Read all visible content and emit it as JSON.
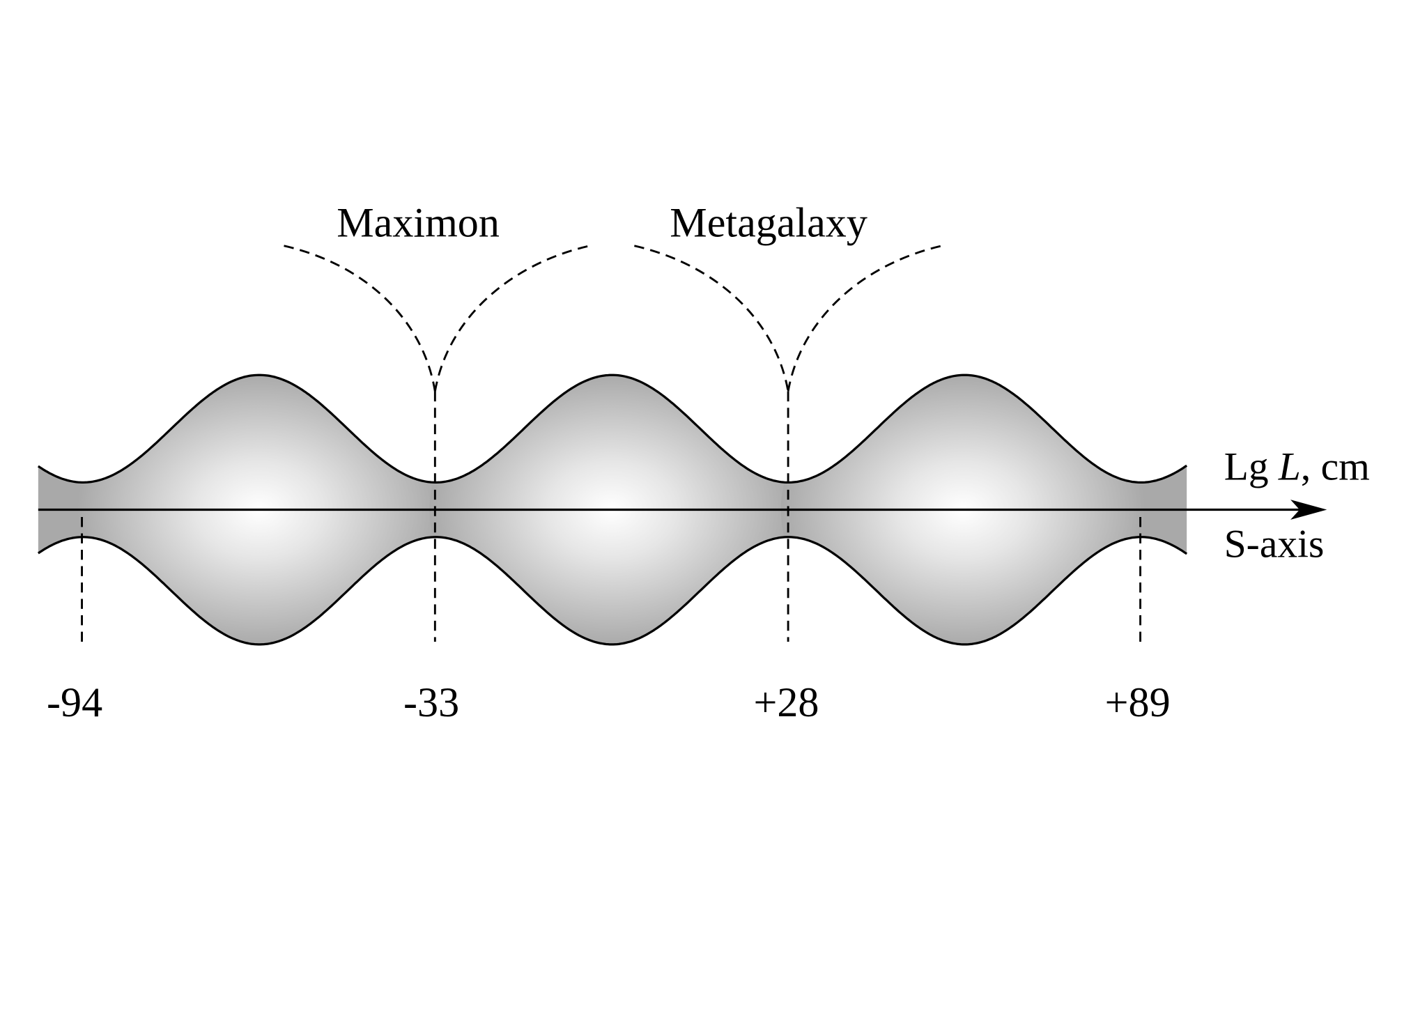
{
  "labels": {
    "maximon": "Maximon",
    "metagalaxy": "Metagalaxy",
    "axis_top_prefix": "Lg ",
    "axis_top_var": "L",
    "axis_top_suffix": ", cm",
    "axis_bottom": "S-axis"
  },
  "ticks": [
    "-94",
    "-33",
    "+28",
    "+89"
  ],
  "colors": {
    "tube_fill": "#a9a9a9",
    "highlight": "#ffffff",
    "stroke": "#000000"
  }
}
